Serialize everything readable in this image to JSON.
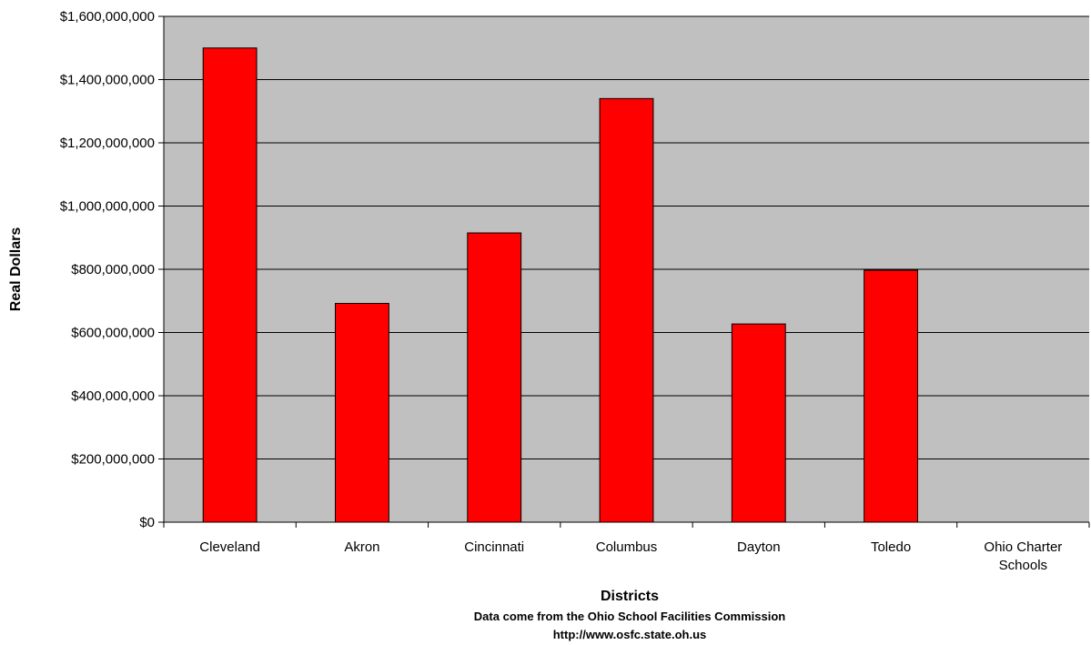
{
  "chart_data": {
    "type": "bar",
    "categories": [
      "Cleveland",
      "Akron",
      "Cincinnati",
      "Columbus",
      "Dayton",
      "Toledo",
      "Ohio Charter Schools"
    ],
    "values": [
      1500000000,
      692000000,
      915000000,
      1340000000,
      627000000,
      797000000,
      0
    ],
    "title": "",
    "xlabel": "Districts",
    "ylabel": "Real Dollars",
    "ylim": [
      0,
      1600000000
    ],
    "y_ticks": [
      "$0",
      "$200,000,000",
      "$400,000,000",
      "$600,000,000",
      "$800,000,000",
      "$1,000,000,000",
      "$1,200,000,000",
      "$1,400,000,000",
      "$1,600,000,000"
    ],
    "notes": [
      "Data come from the Ohio School Facilities Commission",
      "http://www.osfc.state.oh.us"
    ],
    "grid": true,
    "legend": "none",
    "colors": {
      "bar": "#ff0000",
      "plot_background": "#c0c0c0",
      "gridline": "#000000"
    }
  }
}
